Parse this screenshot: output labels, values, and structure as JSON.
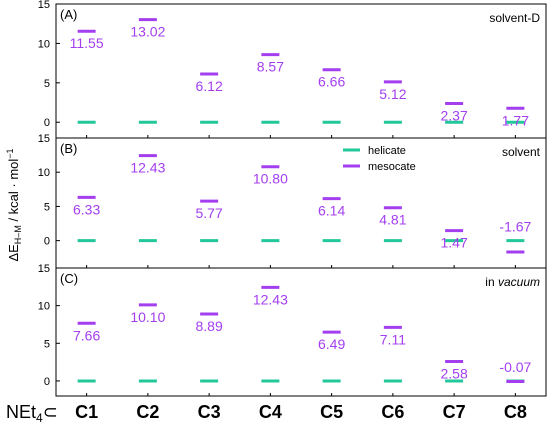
{
  "colors": {
    "helicate": "#22c79a",
    "mesocate": "#a43ff0",
    "axis": "#000000",
    "label_text": "#a43ff0"
  },
  "y_axis_label": {
    "main": "ΔE",
    "subscript": "H–M",
    "unit": " / kcal · mol",
    "superscript": "−1"
  },
  "x_prefix": {
    "main": "NEt",
    "subscript": "4",
    "symbol": "⊂"
  },
  "legend": {
    "helicate": "helicate",
    "mesocate": "mesocate"
  },
  "chart_data": [
    {
      "type": "scatter",
      "panel_label": "(A)",
      "condition": "solvent-D",
      "categories": [
        "C1",
        "C2",
        "C3",
        "C4",
        "C5",
        "C6",
        "C7",
        "C8"
      ],
      "ylim": [
        -2,
        15
      ],
      "yticks": [
        0,
        5,
        10,
        15
      ],
      "series": [
        {
          "name": "helicate",
          "values": [
            0,
            0,
            0,
            0,
            0,
            0,
            0,
            0
          ]
        },
        {
          "name": "mesocate",
          "values": [
            11.55,
            13.02,
            6.12,
            8.57,
            6.66,
            5.12,
            2.37,
            1.77
          ]
        }
      ],
      "value_labels": [
        "11.55",
        "13.02",
        "6.12",
        "8.57",
        "6.66",
        "5.12",
        "2.37",
        "1.77"
      ]
    },
    {
      "type": "scatter",
      "panel_label": "(B)",
      "condition": "solvent",
      "categories": [
        "C1",
        "C2",
        "C3",
        "C4",
        "C5",
        "C6",
        "C7",
        "C8"
      ],
      "ylim": [
        -4,
        15
      ],
      "yticks": [
        0,
        5,
        10,
        15
      ],
      "series": [
        {
          "name": "helicate",
          "values": [
            0,
            0,
            0,
            0,
            0,
            0,
            0,
            0
          ]
        },
        {
          "name": "mesocate",
          "values": [
            6.33,
            12.43,
            5.77,
            10.8,
            6.14,
            4.81,
            1.47,
            -1.67
          ]
        }
      ],
      "value_labels": [
        "6.33",
        "12.43",
        "5.77",
        "10.80",
        "6.14",
        "4.81",
        "1.47",
        "-1.67"
      ]
    },
    {
      "type": "scatter",
      "panel_label": "(C)",
      "condition_prefix": "in ",
      "condition_italic": "vacuum",
      "categories": [
        "C1",
        "C2",
        "C3",
        "C4",
        "C5",
        "C6",
        "C7",
        "C8"
      ],
      "ylim": [
        -2,
        15
      ],
      "yticks": [
        0,
        5,
        10,
        15
      ],
      "series": [
        {
          "name": "helicate",
          "values": [
            0,
            0,
            0,
            0,
            0,
            0,
            0,
            0
          ]
        },
        {
          "name": "mesocate",
          "values": [
            7.66,
            10.1,
            8.89,
            12.43,
            6.49,
            7.11,
            2.58,
            -0.07
          ]
        }
      ],
      "value_labels": [
        "7.66",
        "10.10",
        "8.89",
        "12.43",
        "6.49",
        "7.11",
        "2.58",
        "-0.07"
      ]
    }
  ]
}
